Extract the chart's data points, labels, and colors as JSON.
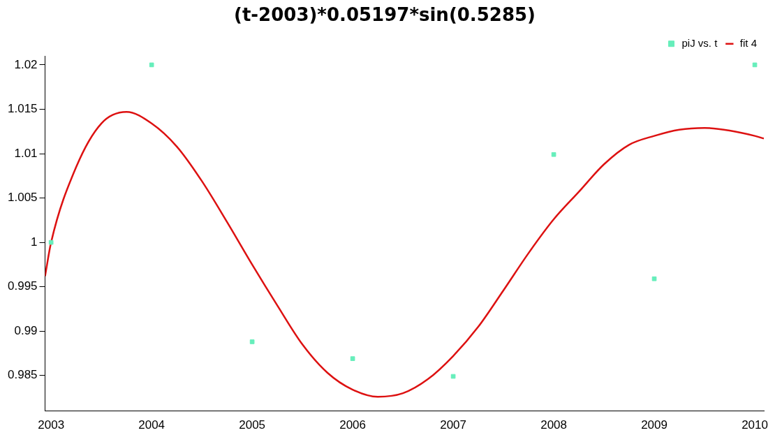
{
  "chart_data": {
    "type": "scatter",
    "title": "(t-2003)*0.05197*sin(0.5285)",
    "xlim": [
      2002.94,
      2010.09
    ],
    "xticks": [
      2003,
      2004,
      2005,
      2006,
      2007,
      2008,
      2009,
      2010
    ],
    "ylim": [
      0.981,
      1.021
    ],
    "yticks": [
      0.985,
      0.99,
      0.995,
      1,
      1.005,
      1.01,
      1.015,
      1.02
    ],
    "grid": false,
    "legend": "top right",
    "series": [
      {
        "name": "piJ vs. t",
        "marker": "square",
        "color": "#66eebb",
        "x": [
          2003,
          2004,
          2005,
          2006,
          2007,
          2008,
          2009,
          2010
        ],
        "values": [
          1.0,
          1.02,
          0.9888,
          0.9869,
          0.9849,
          1.0099,
          0.9959,
          1.02
        ]
      },
      {
        "name": "fit 4",
        "type": "line",
        "marker": "none",
        "color": "#dd1111",
        "line_style": "solid",
        "x": [
          2002.94,
          2003,
          2003.25,
          2003.5,
          2003.75,
          2004,
          2004.25,
          2004.5,
          2004.75,
          2005,
          2005.25,
          2005.5,
          2005.75,
          2006,
          2006.25,
          2006.5,
          2006.75,
          2007,
          2007.25,
          2007.5,
          2007.75,
          2008,
          2008.25,
          2008.5,
          2008.75,
          2009,
          2009.25,
          2009.5,
          2009.75,
          2010,
          2010.09
        ],
        "values": [
          0.9962,
          1.0,
          1.0085,
          1.0134,
          1.0147,
          1.0134,
          1.0108,
          1.0069,
          1.0023,
          0.9975,
          0.9929,
          0.9885,
          0.9853,
          0.9834,
          0.9826,
          0.983,
          0.9846,
          0.9872,
          0.9905,
          0.9946,
          0.9988,
          1.0026,
          1.0057,
          1.0088,
          1.011,
          1.012,
          1.0127,
          1.0129,
          1.0126,
          1.012,
          1.0117
        ]
      }
    ]
  }
}
